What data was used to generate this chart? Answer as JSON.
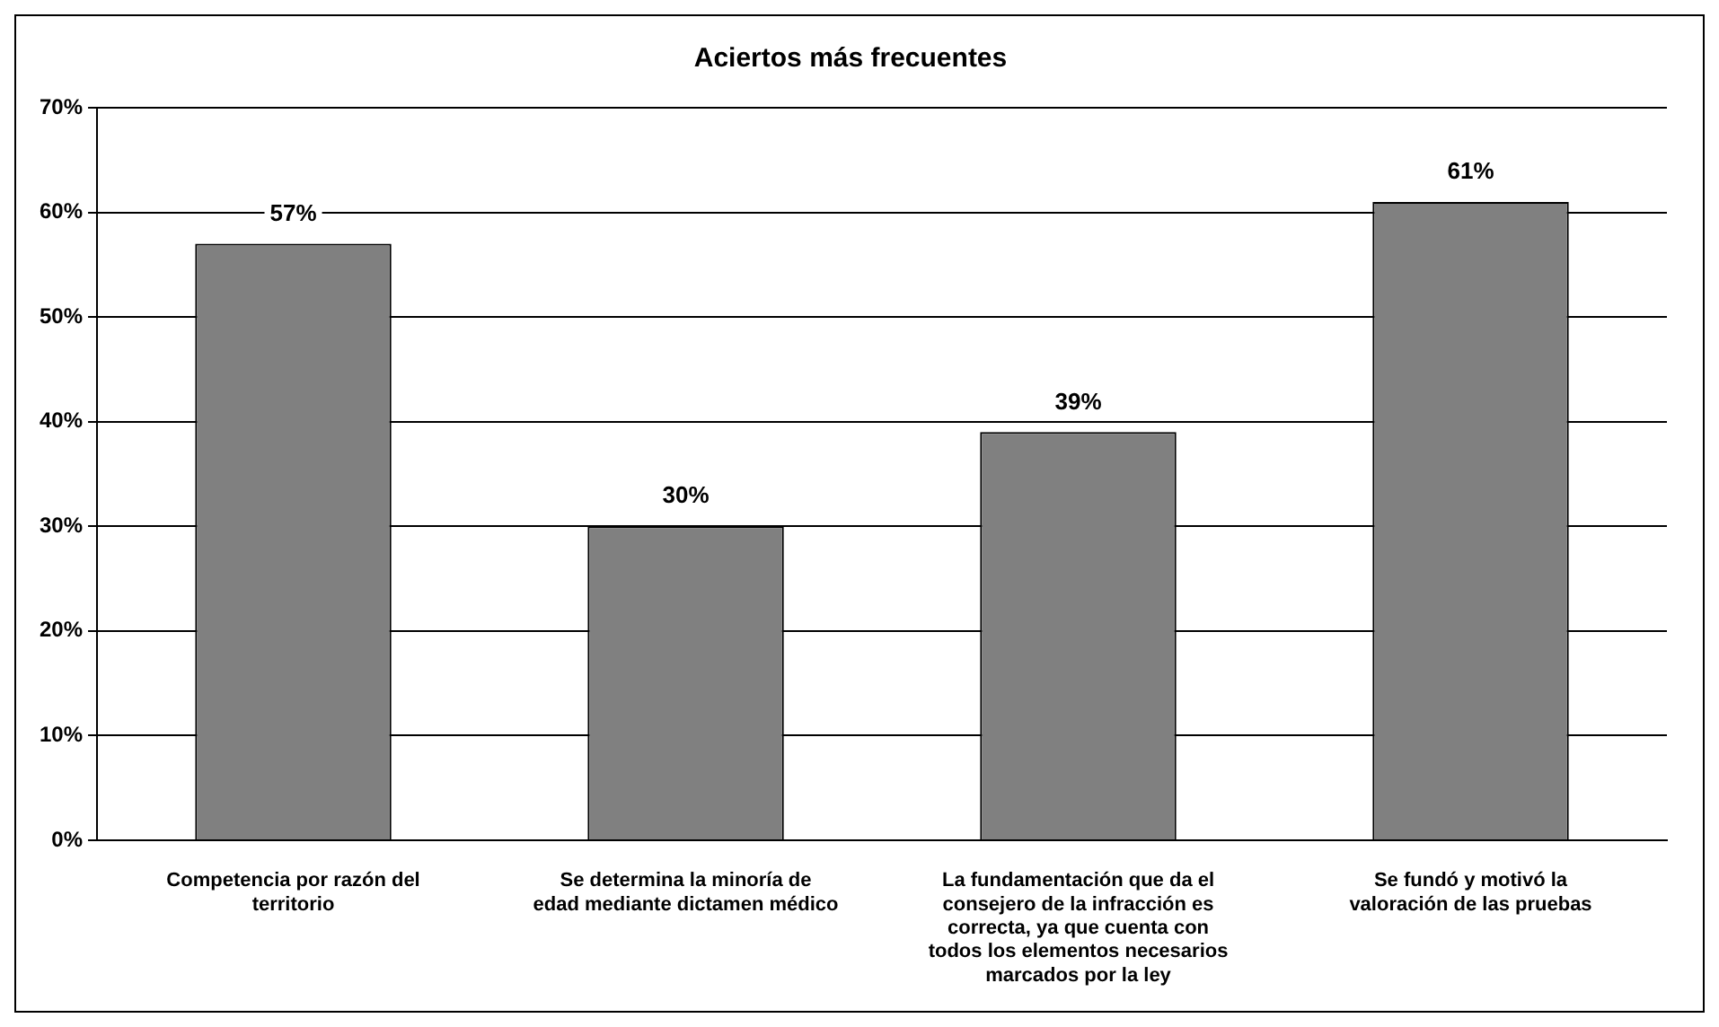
{
  "chart_data": {
    "type": "bar",
    "title": "Aciertos más frecuentes",
    "categories": [
      "Competencia por razón del territorio",
      "Se determina la minoría de edad mediante dictamen médico",
      "La fundamentación que da el consejero de la infracción es correcta, ya que cuenta con todos los elementos necesarios marcados por la ley",
      "Se fundó y motivó la valoración de las pruebas"
    ],
    "values": [
      57,
      30,
      39,
      61
    ],
    "value_labels": [
      "57%",
      "30%",
      "39%",
      "61%"
    ],
    "color": "#808080",
    "ylim": [
      0,
      70
    ],
    "yticks": [
      {
        "value": 0,
        "label": "0%"
      },
      {
        "value": 10,
        "label": "10%"
      },
      {
        "value": 20,
        "label": "20%"
      },
      {
        "value": 30,
        "label": "30%"
      },
      {
        "value": 40,
        "label": "40%"
      },
      {
        "value": 50,
        "label": "50%"
      },
      {
        "value": 60,
        "label": "60%"
      },
      {
        "value": 70,
        "label": "70%"
      }
    ],
    "grid": "y",
    "legend": false
  }
}
